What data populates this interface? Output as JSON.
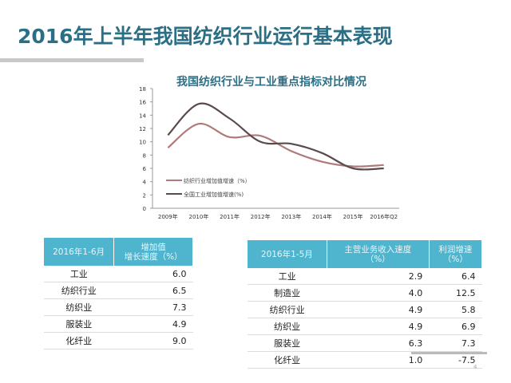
{
  "title": "2016年上半年我国纺织行业运行基本表现",
  "page_number": "4",
  "chart_data": {
    "type": "line",
    "title": "我国纺织行业与工业重点指标对比情况",
    "categories": [
      "2009年",
      "2010年",
      "2011年",
      "2012年",
      "2013年",
      "2014年",
      "2015年",
      "2016年Q2"
    ],
    "ylim": [
      0,
      18
    ],
    "yticks": [
      "0",
      "2",
      "4",
      "6",
      "8",
      "10",
      "12",
      "14",
      "16",
      "18"
    ],
    "legend_position": "bottom-left",
    "series": [
      {
        "name": "纺织行业增加值增速（%）",
        "color": "#b07a78",
        "values": [
          9.1,
          12.7,
          10.7,
          10.9,
          8.6,
          7.0,
          6.3,
          6.5
        ]
      },
      {
        "name": "全国工业增加值增速(%)",
        "color": "#5a4a4d",
        "values": [
          11.0,
          15.7,
          13.5,
          10.0,
          9.7,
          8.3,
          6.0,
          6.0
        ]
      }
    ]
  },
  "table1": {
    "headers": [
      "2016年1-6月",
      "增加值",
      "增长速度（%）"
    ],
    "rows": [
      [
        "工业",
        "6.0"
      ],
      [
        "纺织行业",
        "6.5"
      ],
      [
        "纺织业",
        "7.3"
      ],
      [
        "服装业",
        "4.9"
      ],
      [
        "化纤业",
        "9.0"
      ]
    ]
  },
  "table2": {
    "headers": [
      "2016年1-5月",
      "主营业务收入速度",
      "（%）",
      "利润增速",
      "（%）"
    ],
    "rows": [
      [
        "工业",
        "2.9",
        "6.4"
      ],
      [
        "制造业",
        "4.0",
        "12.5"
      ],
      [
        "纺织行业",
        "4.9",
        "5.8"
      ],
      [
        "纺织业",
        "4.9",
        "6.9"
      ],
      [
        "服装业",
        "6.3",
        "7.3"
      ],
      [
        "化纤业",
        "1.0",
        "-7.5"
      ]
    ]
  }
}
